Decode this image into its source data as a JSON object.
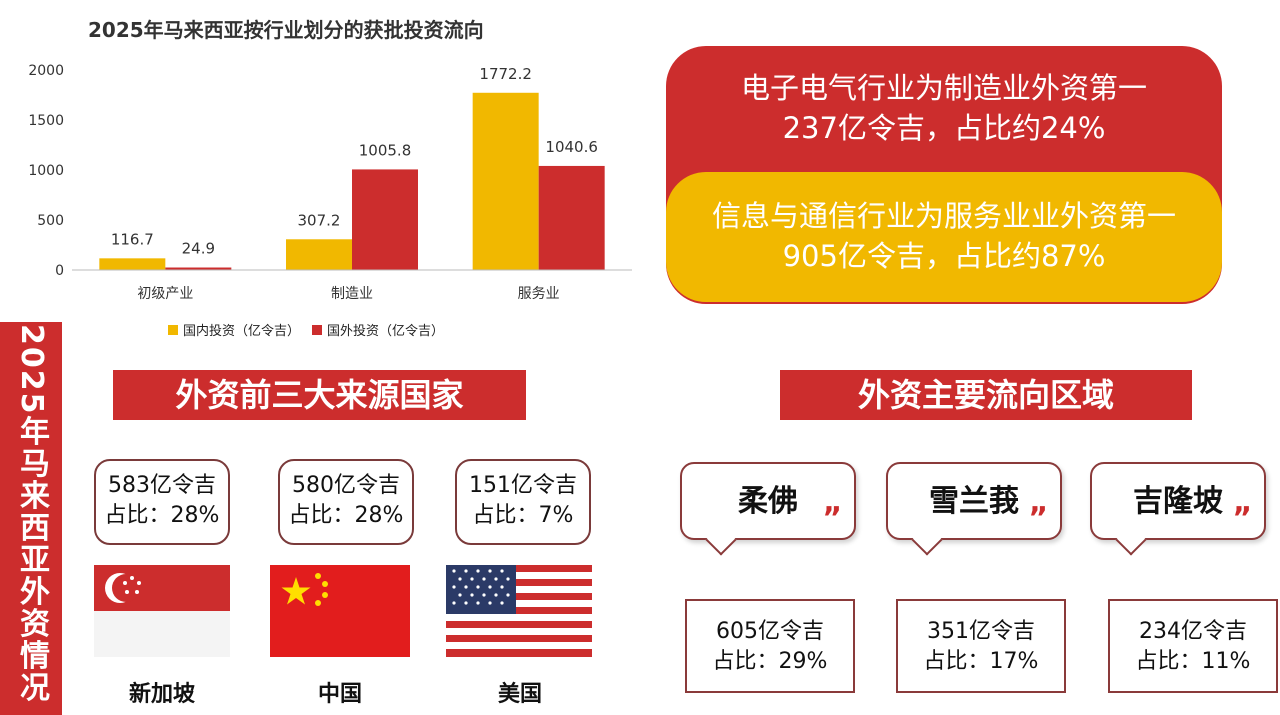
{
  "chart_data": {
    "type": "bar",
    "title": "2025年马来西亚按行业划分的获批投资流向",
    "categories": [
      "初级产业",
      "制造业",
      "服务业"
    ],
    "series": [
      {
        "name": "国内投资（亿令吉）",
        "values": [
          116.7,
          307.2,
          1772.2
        ],
        "color": "#f1b800"
      },
      {
        "name": "国外投资（亿令吉）",
        "values": [
          24.9,
          1005.8,
          1040.6
        ],
        "color": "#cc2d2d"
      }
    ],
    "value_labels": [
      [
        "116.7",
        "307.2",
        "1772.2"
      ],
      [
        "24.9",
        "1005.8",
        "1040.6"
      ]
    ],
    "yticks": [
      "0",
      "500",
      "1000",
      "1500",
      "2000"
    ],
    "ylim": [
      0,
      2000
    ],
    "legend_position": "bottom",
    "grid": false
  },
  "callouts": {
    "manufacturing_line1": "电子电气行业为制造业外资第一",
    "manufacturing_line2": "237亿令吉，占比约24%",
    "services_line1": "信息与通信行业为服务业业外资第一",
    "services_line2": "905亿令吉，占比约87%",
    "red": "#cc2d2d",
    "yellow": "#f1b800"
  },
  "banner": "2025年马来西亚外资情况",
  "sources": {
    "title": "外资前三大来源国家",
    "items": [
      {
        "amount": "583亿令吉",
        "share": "占比：28%",
        "country": "新加坡",
        "flag": "singapore-flag"
      },
      {
        "amount": "580亿令吉",
        "share": "占比：28%",
        "country": "中国",
        "flag": "china-flag"
      },
      {
        "amount": "151亿令吉",
        "share": "占比：7%",
        "country": "美国",
        "flag": "usa-flag"
      }
    ]
  },
  "regions": {
    "title": "外资主要流向区域",
    "quote_mark": "”",
    "items": [
      {
        "name": "柔佛",
        "amount": "605亿令吉",
        "share": "占比：29%"
      },
      {
        "name": "雪兰莪",
        "amount": "351亿令吉",
        "share": "占比：17%"
      },
      {
        "name": "吉隆坡",
        "amount": "234亿令吉",
        "share": "占比：11%"
      }
    ]
  }
}
